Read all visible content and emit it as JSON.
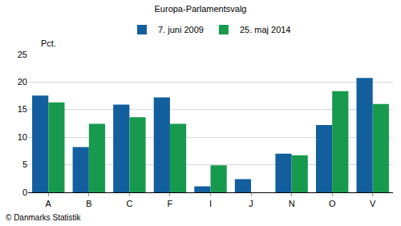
{
  "chart_data": {
    "type": "bar",
    "title": "Europa-Parlamentsvalg",
    "ylabel": "Pct.",
    "annotations": [
      "© Danmarks Statistik"
    ],
    "categories": [
      "A",
      "B",
      "C",
      "F",
      "I",
      "J",
      "N",
      "O",
      "V"
    ],
    "series": [
      {
        "name": "7. juni 2009",
        "color": "#135f9e",
        "values": [
          17.5,
          8.2,
          15.9,
          17.2,
          1.1,
          2.4,
          7.0,
          12.2,
          20.7
        ]
      },
      {
        "name": "25. maj 2014",
        "color": "#179a4e",
        "values": [
          16.3,
          12.4,
          13.6,
          12.4,
          4.9,
          null,
          6.7,
          18.3,
          16.0
        ]
      }
    ],
    "ylim": [
      0,
      25
    ],
    "yticks": [
      0,
      5,
      10,
      15,
      20,
      25
    ],
    "grid": true,
    "legend": "top"
  }
}
